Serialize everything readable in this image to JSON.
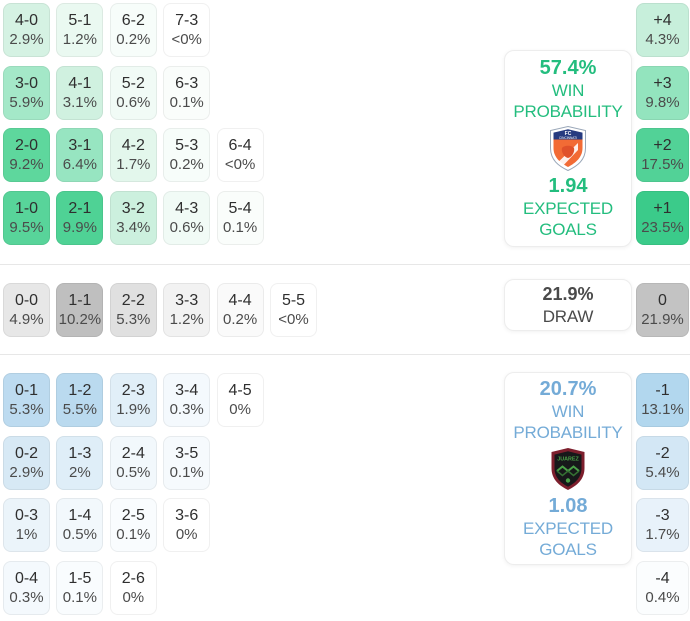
{
  "colors": {
    "home_accent": "#23bd7e",
    "away_accent": "#74abd7",
    "draw_accent": "#4a4a4a",
    "divider": "#e7e7e7"
  },
  "chart_data": {
    "type": "heatmap",
    "title": "Correct score probability matrix with win/draw probabilities and expected goals",
    "legend_position": "right",
    "sections": [
      {
        "id": "home",
        "rows": [
          [
            {
              "score": "4-0",
              "pct": "2.9%",
              "bg": "#d5f2e3"
            },
            {
              "score": "5-1",
              "pct": "1.2%",
              "bg": "#eaf9f1"
            },
            {
              "score": "6-2",
              "pct": "0.2%",
              "bg": "#f7fdfa"
            },
            {
              "score": "7-3",
              "pct": "<0%",
              "bg": "#ffffff"
            }
          ],
          [
            {
              "score": "3-0",
              "pct": "5.9%",
              "bg": "#a4e8c8"
            },
            {
              "score": "4-1",
              "pct": "3.1%",
              "bg": "#d0f1e0"
            },
            {
              "score": "5-2",
              "pct": "0.6%",
              "bg": "#f1fbf6"
            },
            {
              "score": "6-3",
              "pct": "0.1%",
              "bg": "#fafdfb"
            }
          ],
          [
            {
              "score": "2-0",
              "pct": "9.2%",
              "bg": "#5ed79d"
            },
            {
              "score": "3-1",
              "pct": "6.4%",
              "bg": "#97e5c1"
            },
            {
              "score": "4-2",
              "pct": "1.7%",
              "bg": "#e3f7ec"
            },
            {
              "score": "5-3",
              "pct": "0.2%",
              "bg": "#f7fdfa"
            },
            {
              "score": "6-4",
              "pct": "<0%",
              "bg": "#ffffff"
            }
          ],
          [
            {
              "score": "1-0",
              "pct": "9.5%",
              "bg": "#58d49a"
            },
            {
              "score": "2-1",
              "pct": "9.9%",
              "bg": "#4fd295"
            },
            {
              "score": "3-2",
              "pct": "3.4%",
              "bg": "#ccf0de"
            },
            {
              "score": "4-3",
              "pct": "0.6%",
              "bg": "#f1fbf6"
            },
            {
              "score": "5-4",
              "pct": "0.1%",
              "bg": "#fafdfb"
            }
          ]
        ],
        "margins": [
          {
            "label": "+4",
            "pct": "4.3%",
            "bg": "#c7efdb"
          },
          {
            "label": "+3",
            "pct": "9.8%",
            "bg": "#93e4be"
          },
          {
            "label": "+2",
            "pct": "17.5%",
            "bg": "#52d297"
          },
          {
            "label": "+1",
            "pct": "23.5%",
            "bg": "#3bcb8a"
          }
        ],
        "panel": {
          "value": "57.4%",
          "label_line1": "WIN",
          "label_line2": "PROBABILITY",
          "xg_value": "1.94",
          "xg_label_line1": "EXPECTED",
          "xg_label_line2": "GOALS",
          "crest_icon": "fc-cincinnati-crest"
        }
      },
      {
        "id": "draw",
        "rows": [
          [
            {
              "score": "0-0",
              "pct": "4.9%",
              "bg": "#e7e7e7"
            },
            {
              "score": "1-1",
              "pct": "10.2%",
              "bg": "#bfbfbf"
            },
            {
              "score": "2-2",
              "pct": "5.3%",
              "bg": "#e0e0e0"
            },
            {
              "score": "3-3",
              "pct": "1.2%",
              "bg": "#f2f2f2"
            },
            {
              "score": "4-4",
              "pct": "0.2%",
              "bg": "#fafafa"
            },
            {
              "score": "5-5",
              "pct": "<0%",
              "bg": "#ffffff"
            }
          ]
        ],
        "margins": [
          {
            "label": "0",
            "pct": "21.9%",
            "bg": "#c3c3c3"
          }
        ],
        "panel": {
          "value": "21.9%",
          "label_line1": "DRAW"
        }
      },
      {
        "id": "away",
        "rows": [
          [
            {
              "score": "0-1",
              "pct": "5.3%",
              "bg": "#bddbf0"
            },
            {
              "score": "1-2",
              "pct": "5.5%",
              "bg": "#badaef"
            },
            {
              "score": "2-3",
              "pct": "1.9%",
              "bg": "#e1eff8"
            },
            {
              "score": "3-4",
              "pct": "0.3%",
              "bg": "#f4f9fd"
            },
            {
              "score": "4-5",
              "pct": "0%",
              "bg": "#ffffff"
            }
          ],
          [
            {
              "score": "0-2",
              "pct": "2.9%",
              "bg": "#d7e9f5"
            },
            {
              "score": "1-3",
              "pct": "2%",
              "bg": "#dfeef8"
            },
            {
              "score": "2-4",
              "pct": "0.5%",
              "bg": "#f2f8fc"
            },
            {
              "score": "3-5",
              "pct": "0.1%",
              "bg": "#f6fafd"
            }
          ],
          [
            {
              "score": "0-3",
              "pct": "1%",
              "bg": "#ebf4fa"
            },
            {
              "score": "1-4",
              "pct": "0.5%",
              "bg": "#f2f8fc"
            },
            {
              "score": "2-5",
              "pct": "0.1%",
              "bg": "#f9fcfe"
            },
            {
              "score": "3-6",
              "pct": "0%",
              "bg": "#ffffff"
            }
          ],
          [
            {
              "score": "0-4",
              "pct": "0.3%",
              "bg": "#f4f9fd"
            },
            {
              "score": "1-5",
              "pct": "0.1%",
              "bg": "#f9fcfe"
            },
            {
              "score": "2-6",
              "pct": "0%",
              "bg": "#ffffff"
            }
          ]
        ],
        "margins": [
          {
            "label": "-1",
            "pct": "13.1%",
            "bg": "#b2d7ee"
          },
          {
            "label": "-2",
            "pct": "5.4%",
            "bg": "#d3e7f5"
          },
          {
            "label": "-3",
            "pct": "1.7%",
            "bg": "#e8f2fa"
          },
          {
            "label": "-4",
            "pct": "0.4%",
            "bg": "#fbfdfe"
          }
        ],
        "panel": {
          "value": "20.7%",
          "label_line1": "WIN",
          "label_line2": "PROBABILITY",
          "xg_value": "1.08",
          "xg_label_line1": "EXPECTED",
          "xg_label_line2": "GOALS",
          "crest_icon": "fc-juarez-crest"
        }
      }
    ]
  }
}
